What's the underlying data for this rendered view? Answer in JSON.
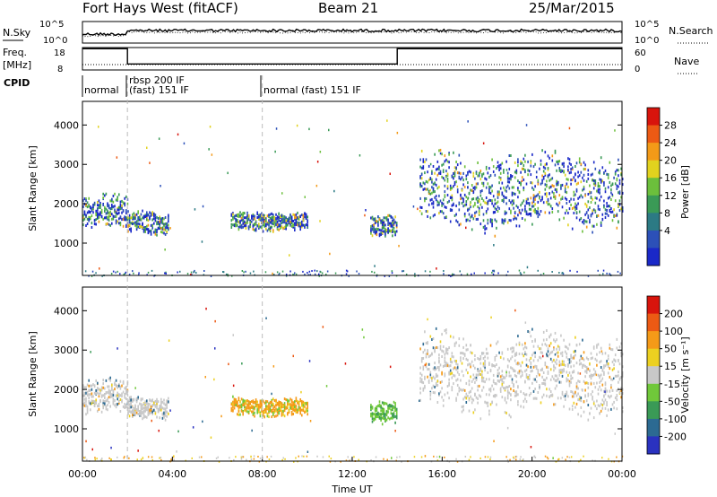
{
  "header": {
    "station": "Fort Hays West (fitACF)",
    "beam": "Beam 21",
    "date": "25/Mar/2015"
  },
  "status_panels": {
    "nsky_label": "N.Sky",
    "nsky_ticks": [
      "10^5",
      "10^0"
    ],
    "nsearch_label": "N.Search",
    "nsearch_ticks": [
      "10^5",
      "10^0"
    ],
    "freq_label_1": "Freq.",
    "freq_label_2": "[MHz]",
    "freq_ticks": [
      "18",
      "8"
    ],
    "nave_label": "Nave",
    "nave_ticks": [
      "60",
      "0"
    ],
    "cpid_label": "CPID",
    "cpid_segments": [
      {
        "label": "normal",
        "start_h": 0.0
      },
      {
        "label": "rbsp 200 IF",
        "start_h": 2.0
      },
      {
        "label": "(fast) 151 IF",
        "start_h": 2.0
      },
      {
        "label": "normal (fast) 151 IF",
        "start_h": 8.0
      }
    ],
    "freq_mhz": [
      {
        "start_h": 0,
        "end_h": 2,
        "value": 17.5
      },
      {
        "start_h": 2,
        "end_h": 14,
        "value": 10.7
      },
      {
        "start_h": 14,
        "end_h": 24,
        "value": 17.5
      }
    ]
  },
  "chart_data": [
    {
      "type": "heatmap",
      "name": "power-panel",
      "ylabel": "Slant Range [km]",
      "xlabel": "",
      "xlim": [
        0,
        24
      ],
      "ylim": [
        180,
        4600
      ],
      "yticks": [
        "1000",
        "2000",
        "3000",
        "4000"
      ],
      "colorbar": {
        "label": "Power [dB]",
        "ticks": [
          "28",
          "24",
          "20",
          "16",
          "12",
          "8",
          "4"
        ],
        "colors": [
          "#1a28c8",
          "#2c50b8",
          "#2c7a84",
          "#3a9a56",
          "#6cbf3c",
          "#e2d21e",
          "#f39a18",
          "#ec5a14",
          "#d8140c"
        ]
      },
      "regions": [
        {
          "t0": 0.0,
          "t1": 2.0,
          "r0": 1350,
          "r1": 2250,
          "level": "mid"
        },
        {
          "t0": 2.0,
          "t1": 3.8,
          "r0": 1250,
          "r1": 1900,
          "level": "low"
        },
        {
          "t0": 6.6,
          "t1": 10.0,
          "r0": 1350,
          "r1": 1850,
          "level": "mid"
        },
        {
          "t0": 12.8,
          "t1": 14.0,
          "r0": 1200,
          "r1": 1800,
          "level": "mid"
        },
        {
          "t0": 15.0,
          "t1": 24.0,
          "r0": 1350,
          "r1": 3400,
          "level": "mid"
        }
      ]
    },
    {
      "type": "heatmap",
      "name": "velocity-panel",
      "ylabel": "Slant Range [km]",
      "xlabel": "Time UT",
      "xlim": [
        0,
        24
      ],
      "ylim": [
        180,
        4600
      ],
      "yticks": [
        "1000",
        "2000",
        "3000",
        "4000"
      ],
      "xticks": [
        "00:00",
        "04:00",
        "08:00",
        "12:00",
        "16:00",
        "20:00",
        "00:00"
      ],
      "colorbar": {
        "label": "Velocity [m s⁻¹]",
        "ticks": [
          "200",
          "100",
          "50",
          "15",
          "-15",
          "-50",
          "-100",
          "-200"
        ],
        "colors": [
          "#2a32c0",
          "#2c6a92",
          "#3a9a56",
          "#70c83a",
          "#c8c8c8",
          "#ecd020",
          "#f59a18",
          "#ec5a14",
          "#d8140c"
        ]
      },
      "regions": [
        {
          "t0": 0.0,
          "t1": 2.0,
          "r0": 1350,
          "r1": 2300,
          "level": "gray"
        },
        {
          "t0": 2.0,
          "t1": 3.8,
          "r0": 1300,
          "r1": 1900,
          "level": "gray"
        },
        {
          "t0": 6.6,
          "t1": 10.0,
          "r0": 1350,
          "r1": 1850,
          "level": "orange"
        },
        {
          "t0": 12.8,
          "t1": 14.0,
          "r0": 1200,
          "r1": 1800,
          "level": "green"
        },
        {
          "t0": 15.0,
          "t1": 24.0,
          "r0": 1350,
          "r1": 3500,
          "level": "gray"
        }
      ]
    }
  ]
}
